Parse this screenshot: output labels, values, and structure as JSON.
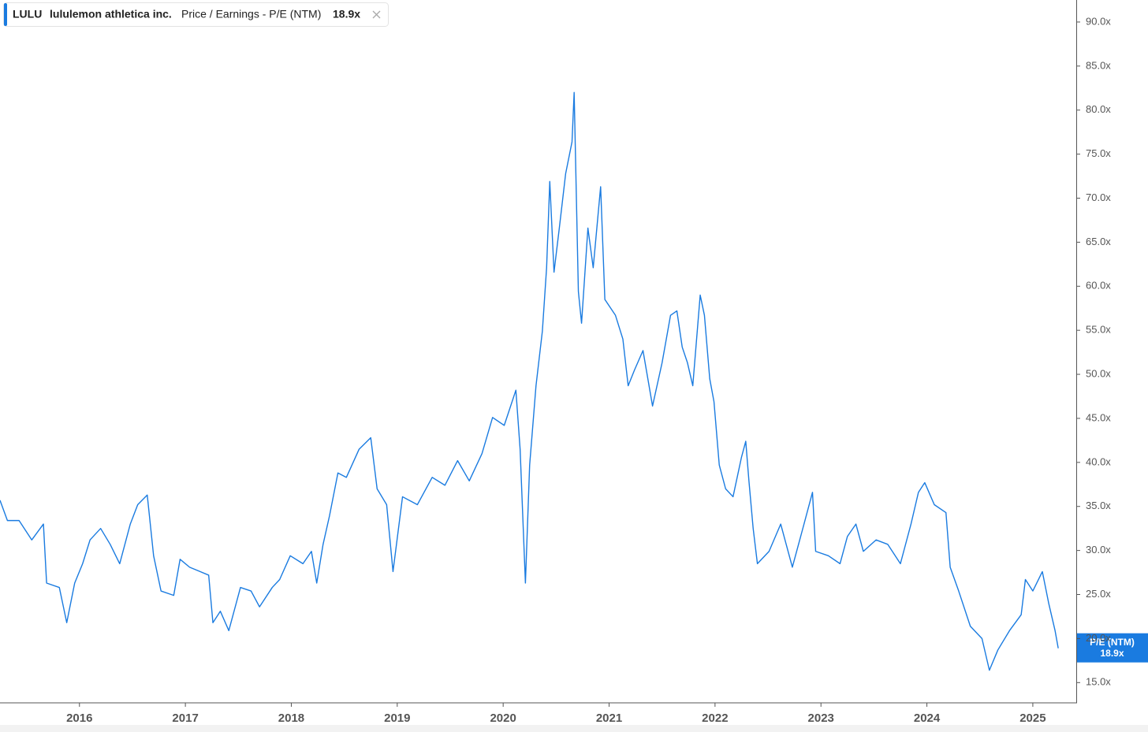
{
  "chart_data": {
    "type": "line",
    "header": {
      "ticker": "LULU",
      "company": "lululemon athletica inc.",
      "metric": "Price / Earnings - P/E (NTM)",
      "value": 18.9,
      "value_label": "18.9x"
    },
    "current_tag": {
      "label": "P/E (NTM)",
      "value": 18.9,
      "value_label": "18.9x"
    },
    "xlim": [
      2015.25,
      2025.41
    ],
    "xticks": [
      2016,
      2017,
      2018,
      2019,
      2020,
      2021,
      2022,
      2023,
      2024,
      2025
    ],
    "ylim": [
      12.7,
      92.5
    ],
    "yticks": [
      {
        "value": 15,
        "label": "15.0x"
      },
      {
        "value": 20,
        "label": "20.0x"
      },
      {
        "value": 25,
        "label": "25.0x"
      },
      {
        "value": 30,
        "label": "30.0x"
      },
      {
        "value": 35,
        "label": "35.0x"
      },
      {
        "value": 40,
        "label": "40.0x"
      },
      {
        "value": 45,
        "label": "45.0x"
      },
      {
        "value": 50,
        "label": "50.0x"
      },
      {
        "value": 55,
        "label": "55.0x"
      },
      {
        "value": 60,
        "label": "60.0x"
      },
      {
        "value": 65,
        "label": "65.0x"
      },
      {
        "value": 70,
        "label": "70.0x"
      },
      {
        "value": 75,
        "label": "75.0x"
      },
      {
        "value": 80,
        "label": "80.0x"
      },
      {
        "value": 85,
        "label": "85.0x"
      },
      {
        "value": 90,
        "label": "90.0x"
      }
    ],
    "grid": false,
    "x": [
      2015.25,
      2015.32,
      2015.43,
      2015.55,
      2015.66,
      2015.69,
      2015.81,
      2015.88,
      2015.955,
      2016.03,
      2016.1,
      2016.2,
      2016.29,
      2016.38,
      2016.48,
      2016.55,
      2016.64,
      2016.7,
      2016.77,
      2016.89,
      2016.95,
      2017.04,
      2017.22,
      2017.26,
      2017.33,
      2017.41,
      2017.52,
      2017.62,
      2017.7,
      2017.82,
      2017.89,
      2017.99,
      2018.11,
      2018.19,
      2018.24,
      2018.3,
      2018.36,
      2018.44,
      2018.52,
      2018.64,
      2018.75,
      2018.81,
      2018.9,
      2018.96,
      2019.05,
      2019.19,
      2019.33,
      2019.45,
      2019.57,
      2019.68,
      2019.8,
      2019.9,
      2020.01,
      2020.12,
      2020.16,
      2020.21,
      2020.25,
      2020.31,
      2020.37,
      2020.41,
      2020.44,
      2020.48,
      2020.53,
      2020.59,
      2020.65,
      2020.67,
      2020.71,
      2020.74,
      2020.8,
      2020.85,
      2020.92,
      2020.96,
      2021.06,
      2021.13,
      2021.18,
      2021.24,
      2021.32,
      2021.41,
      2021.5,
      2021.58,
      2021.64,
      2021.69,
      2021.74,
      2021.79,
      2021.86,
      2021.9,
      2021.95,
      2021.99,
      2022.04,
      2022.1,
      2022.17,
      2022.25,
      2022.29,
      2022.32,
      2022.36,
      2022.4,
      2022.51,
      2022.62,
      2022.73,
      2022.84,
      2022.92,
      2022.95,
      2023.07,
      2023.18,
      2023.25,
      2023.33,
      2023.4,
      2023.52,
      2023.63,
      2023.75,
      2023.85,
      2023.92,
      2023.98,
      2024.07,
      2024.18,
      2024.22,
      2024.3,
      2024.41,
      2024.52,
      2024.59,
      2024.67,
      2024.78,
      2024.89,
      2024.93,
      2025.0,
      2025.09,
      2025.15,
      2025.21,
      2025.24
    ],
    "series": [
      {
        "name": "P/E (NTM)",
        "color": "#1a7be0",
        "values": [
          35.7,
          33.4,
          33.4,
          31.2,
          33,
          26.3,
          25.8,
          21.8,
          26.3,
          28.5,
          31.2,
          32.5,
          30.7,
          28.5,
          33,
          35.2,
          36.3,
          29.4,
          25.4,
          24.9,
          29,
          28.1,
          27.2,
          21.8,
          23.1,
          20.9,
          25.8,
          25.4,
          23.6,
          25.8,
          26.7,
          29.4,
          28.5,
          29.9,
          26.3,
          30.7,
          33.9,
          38.8,
          38.3,
          41.5,
          42.8,
          37,
          35.2,
          27.6,
          36.1,
          35.2,
          38.3,
          37.4,
          40.2,
          37.9,
          41,
          45.1,
          44.2,
          48.2,
          41.5,
          26.3,
          39.7,
          48.7,
          54.9,
          62.1,
          71.9,
          61.6,
          66.6,
          72.8,
          76.4,
          82,
          59.4,
          55.8,
          66.6,
          62.1,
          71.3,
          58.5,
          56.7,
          54,
          48.7,
          50.5,
          52.7,
          46.4,
          51.3,
          56.7,
          57.2,
          53.1,
          51.3,
          48.7,
          59,
          56.7,
          49.5,
          46.9,
          39.7,
          37,
          36.1,
          40.6,
          42.4,
          37.9,
          32.5,
          28.5,
          29.9,
          33,
          28.1,
          33,
          36.6,
          29.9,
          29.4,
          28.5,
          31.6,
          33,
          29.9,
          31.2,
          30.7,
          28.5,
          33,
          36.6,
          37.7,
          35.2,
          34.3,
          28.1,
          25.4,
          21.4,
          20,
          16.4,
          18.7,
          20.9,
          22.7,
          26.7,
          25.4,
          27.6,
          24,
          20.9,
          18.9
        ]
      }
    ]
  }
}
